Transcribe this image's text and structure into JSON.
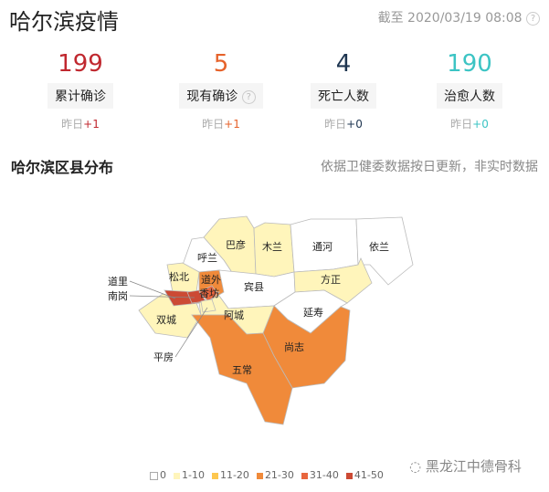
{
  "header": {
    "title": "哈尔滨疫情",
    "timestamp": "截至 2020/03/19 08:08"
  },
  "stats": [
    {
      "value": "199",
      "label": "累计确诊",
      "delta_prefix": "昨日",
      "delta": "+1",
      "color": "#c0282f"
    },
    {
      "value": "5",
      "label": "现有确诊",
      "delta_prefix": "昨日",
      "delta": "+1",
      "color": "#e6622a",
      "help": "?"
    },
    {
      "value": "4",
      "label": "死亡人数",
      "delta_prefix": "昨日",
      "delta": "+0",
      "color": "#1e3550"
    },
    {
      "value": "190",
      "label": "治愈人数",
      "delta_prefix": "昨日",
      "delta": "+0",
      "color": "#3cc4c4"
    }
  ],
  "map": {
    "title": "哈尔滨区县分布",
    "note": "依据卫健委数据按日更新，非实时数据",
    "regions": [
      {
        "name": "巴彦",
        "bin": "1-10"
      },
      {
        "name": "木兰",
        "bin": "1-10"
      },
      {
        "name": "通河",
        "bin": "0"
      },
      {
        "name": "依兰",
        "bin": "0"
      },
      {
        "name": "呼兰",
        "bin": "0"
      },
      {
        "name": "松北",
        "bin": "1-10"
      },
      {
        "name": "宾县",
        "bin": "0"
      },
      {
        "name": "方正",
        "bin": "1-10"
      },
      {
        "name": "延寿",
        "bin": "0"
      },
      {
        "name": "阿城",
        "bin": "1-10"
      },
      {
        "name": "双城",
        "bin": "1-10"
      },
      {
        "name": "尚志",
        "bin": "21-30"
      },
      {
        "name": "五常",
        "bin": "21-30"
      },
      {
        "name": "道外",
        "bin": "21-30"
      },
      {
        "name": "道里",
        "bin": "41-50"
      },
      {
        "name": "南岗",
        "bin": "41-50"
      },
      {
        "name": "香坊",
        "bin": "31-40"
      },
      {
        "name": "平房",
        "bin": "1-10"
      }
    ],
    "legend": [
      {
        "label": "0",
        "color": "#ffffff"
      },
      {
        "label": "1-10",
        "color": "#fff5bb"
      },
      {
        "label": "11-20",
        "color": "#fdc74f"
      },
      {
        "label": "21-30",
        "color": "#f08a3a"
      },
      {
        "label": "31-40",
        "color": "#e8663e"
      },
      {
        "label": "41-50",
        "color": "#cc4a34"
      }
    ]
  },
  "watermark": "黑龙江中德骨科"
}
